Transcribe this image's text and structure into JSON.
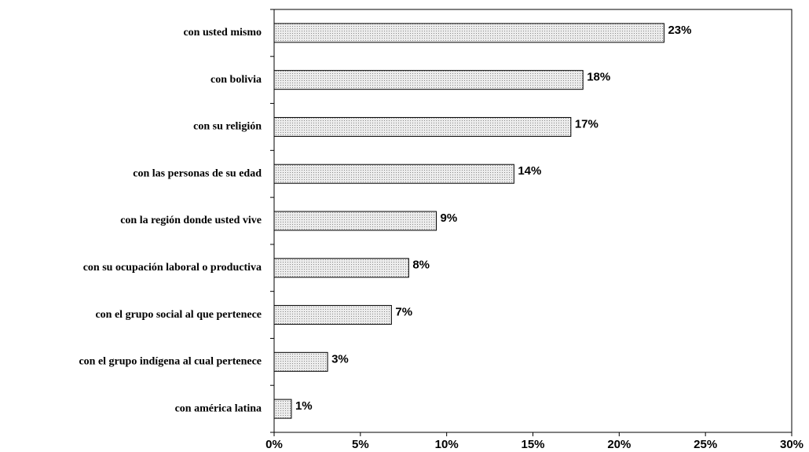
{
  "chart_data": {
    "type": "barh",
    "categories": [
      "con usted mismo",
      "con bolivia",
      "con su religión",
      "con las personas de su edad",
      "con la región donde usted vive",
      "con su ocupación laboral o productiva",
      "con el grupo social al que pertenece",
      "con el grupo indígena al cual pertenece",
      "con américa latina"
    ],
    "values": [
      22.6,
      17.9,
      17.2,
      13.9,
      9.4,
      7.8,
      6.8,
      3.1,
      1.0
    ],
    "value_labels": [
      "23%",
      "18%",
      "17%",
      "14%",
      "9%",
      "8%",
      "7%",
      "3%",
      "1%"
    ],
    "color": "#d4d4d4",
    "xlim": [
      0,
      30
    ],
    "xticks": [
      {
        "value": 0,
        "label": "0%"
      },
      {
        "value": 5,
        "label": "5%"
      },
      {
        "value": 10,
        "label": "10%"
      },
      {
        "value": 15,
        "label": "15%"
      },
      {
        "value": 20,
        "label": "20%"
      },
      {
        "value": 25,
        "label": "25%"
      },
      {
        "value": 30,
        "label": "30%"
      }
    ],
    "grid": false
  }
}
